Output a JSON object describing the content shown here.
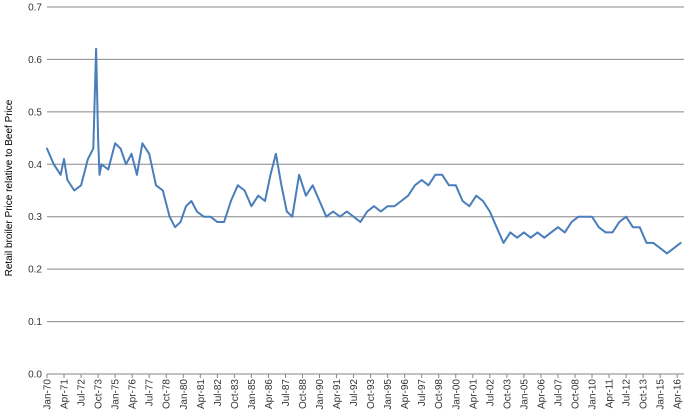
{
  "chart_data": {
    "type": "line",
    "title": "",
    "xlabel": "",
    "ylabel": "Retail broiler Price relative to Beef Price",
    "ylim": [
      0,
      0.7
    ],
    "y_ticks": [
      "0.0",
      "0.1",
      "0.2",
      "0.3",
      "0.4",
      "0.5",
      "0.6",
      "0.7"
    ],
    "x_tick_labels": [
      "Jan-70",
      "Apr-71",
      "Jul-72",
      "Oct-73",
      "Jan-75",
      "Apr-76",
      "Jul-77",
      "Oct-78",
      "Jan-80",
      "Apr-81",
      "Jul-82",
      "Oct-83",
      "Jan-85",
      "Apr-86",
      "Jul-87",
      "Oct-88",
      "Jan-90",
      "Apr-91",
      "Jul-92",
      "Oct-93",
      "Jan-95",
      "Apr-96",
      "Jul-97",
      "Oct-98",
      "Jan-00",
      "Apr-01",
      "Jul-02",
      "Oct-03",
      "Jan-05",
      "Apr-06",
      "Jul-07",
      "Oct-08",
      "Jan-10",
      "Apr-11",
      "Jul-12",
      "Oct-13",
      "Jan-15",
      "Apr-16"
    ],
    "grid": "horizontal",
    "legend": "none",
    "line_color": "#4a7ebb",
    "series": [
      {
        "x": [
          1970.0,
          1970.5,
          1971.0,
          1971.25,
          1971.5,
          1972.0,
          1972.5,
          1973.0,
          1973.4,
          1973.6,
          1973.75,
          1973.85,
          1974.0,
          1974.5,
          1975.0,
          1975.4,
          1975.8,
          1976.2,
          1976.6,
          1977.0,
          1977.5,
          1978.0,
          1978.5,
          1979.0,
          1979.4,
          1979.8,
          1980.2,
          1980.6,
          1981.0,
          1981.5,
          1982.0,
          1982.5,
          1983.0,
          1983.5,
          1984.0,
          1984.5,
          1985.0,
          1985.5,
          1986.0,
          1986.4,
          1986.8,
          1987.2,
          1987.6,
          1988.0,
          1988.5,
          1989.0,
          1989.5,
          1990.0,
          1990.5,
          1991.0,
          1991.5,
          1992.0,
          1992.5,
          1993.0,
          1993.5,
          1994.0,
          1994.5,
          1995.0,
          1995.5,
          1996.0,
          1996.5,
          1997.0,
          1997.5,
          1998.0,
          1998.5,
          1999.0,
          1999.5,
          2000.0,
          2000.5,
          2001.0,
          2001.5,
          2002.0,
          2002.5,
          2003.0,
          2003.5,
          2004.0,
          2004.5,
          2005.0,
          2005.5,
          2006.0,
          2006.5,
          2007.0,
          2007.5,
          2008.0,
          2008.5,
          2009.0,
          2009.5,
          2010.0,
          2010.5,
          2011.0,
          2011.5,
          2012.0,
          2012.5,
          2013.0,
          2013.5,
          2014.0,
          2014.5,
          2015.0,
          2015.5,
          2016.0,
          2016.5
        ],
        "values": [
          0.43,
          0.4,
          0.38,
          0.41,
          0.37,
          0.35,
          0.36,
          0.41,
          0.43,
          0.62,
          0.45,
          0.38,
          0.4,
          0.39,
          0.44,
          0.43,
          0.4,
          0.42,
          0.38,
          0.44,
          0.42,
          0.36,
          0.35,
          0.3,
          0.28,
          0.29,
          0.32,
          0.33,
          0.31,
          0.3,
          0.3,
          0.29,
          0.29,
          0.33,
          0.36,
          0.35,
          0.32,
          0.34,
          0.33,
          0.38,
          0.42,
          0.36,
          0.31,
          0.3,
          0.38,
          0.34,
          0.36,
          0.33,
          0.3,
          0.31,
          0.3,
          0.31,
          0.3,
          0.29,
          0.31,
          0.32,
          0.31,
          0.32,
          0.32,
          0.33,
          0.34,
          0.36,
          0.37,
          0.36,
          0.38,
          0.38,
          0.36,
          0.36,
          0.33,
          0.32,
          0.34,
          0.33,
          0.31,
          0.28,
          0.25,
          0.27,
          0.26,
          0.27,
          0.26,
          0.27,
          0.26,
          0.27,
          0.28,
          0.27,
          0.29,
          0.3,
          0.3,
          0.3,
          0.28,
          0.27,
          0.27,
          0.29,
          0.3,
          0.28,
          0.28,
          0.25,
          0.25,
          0.24,
          0.23,
          0.24,
          0.25
        ]
      }
    ]
  }
}
